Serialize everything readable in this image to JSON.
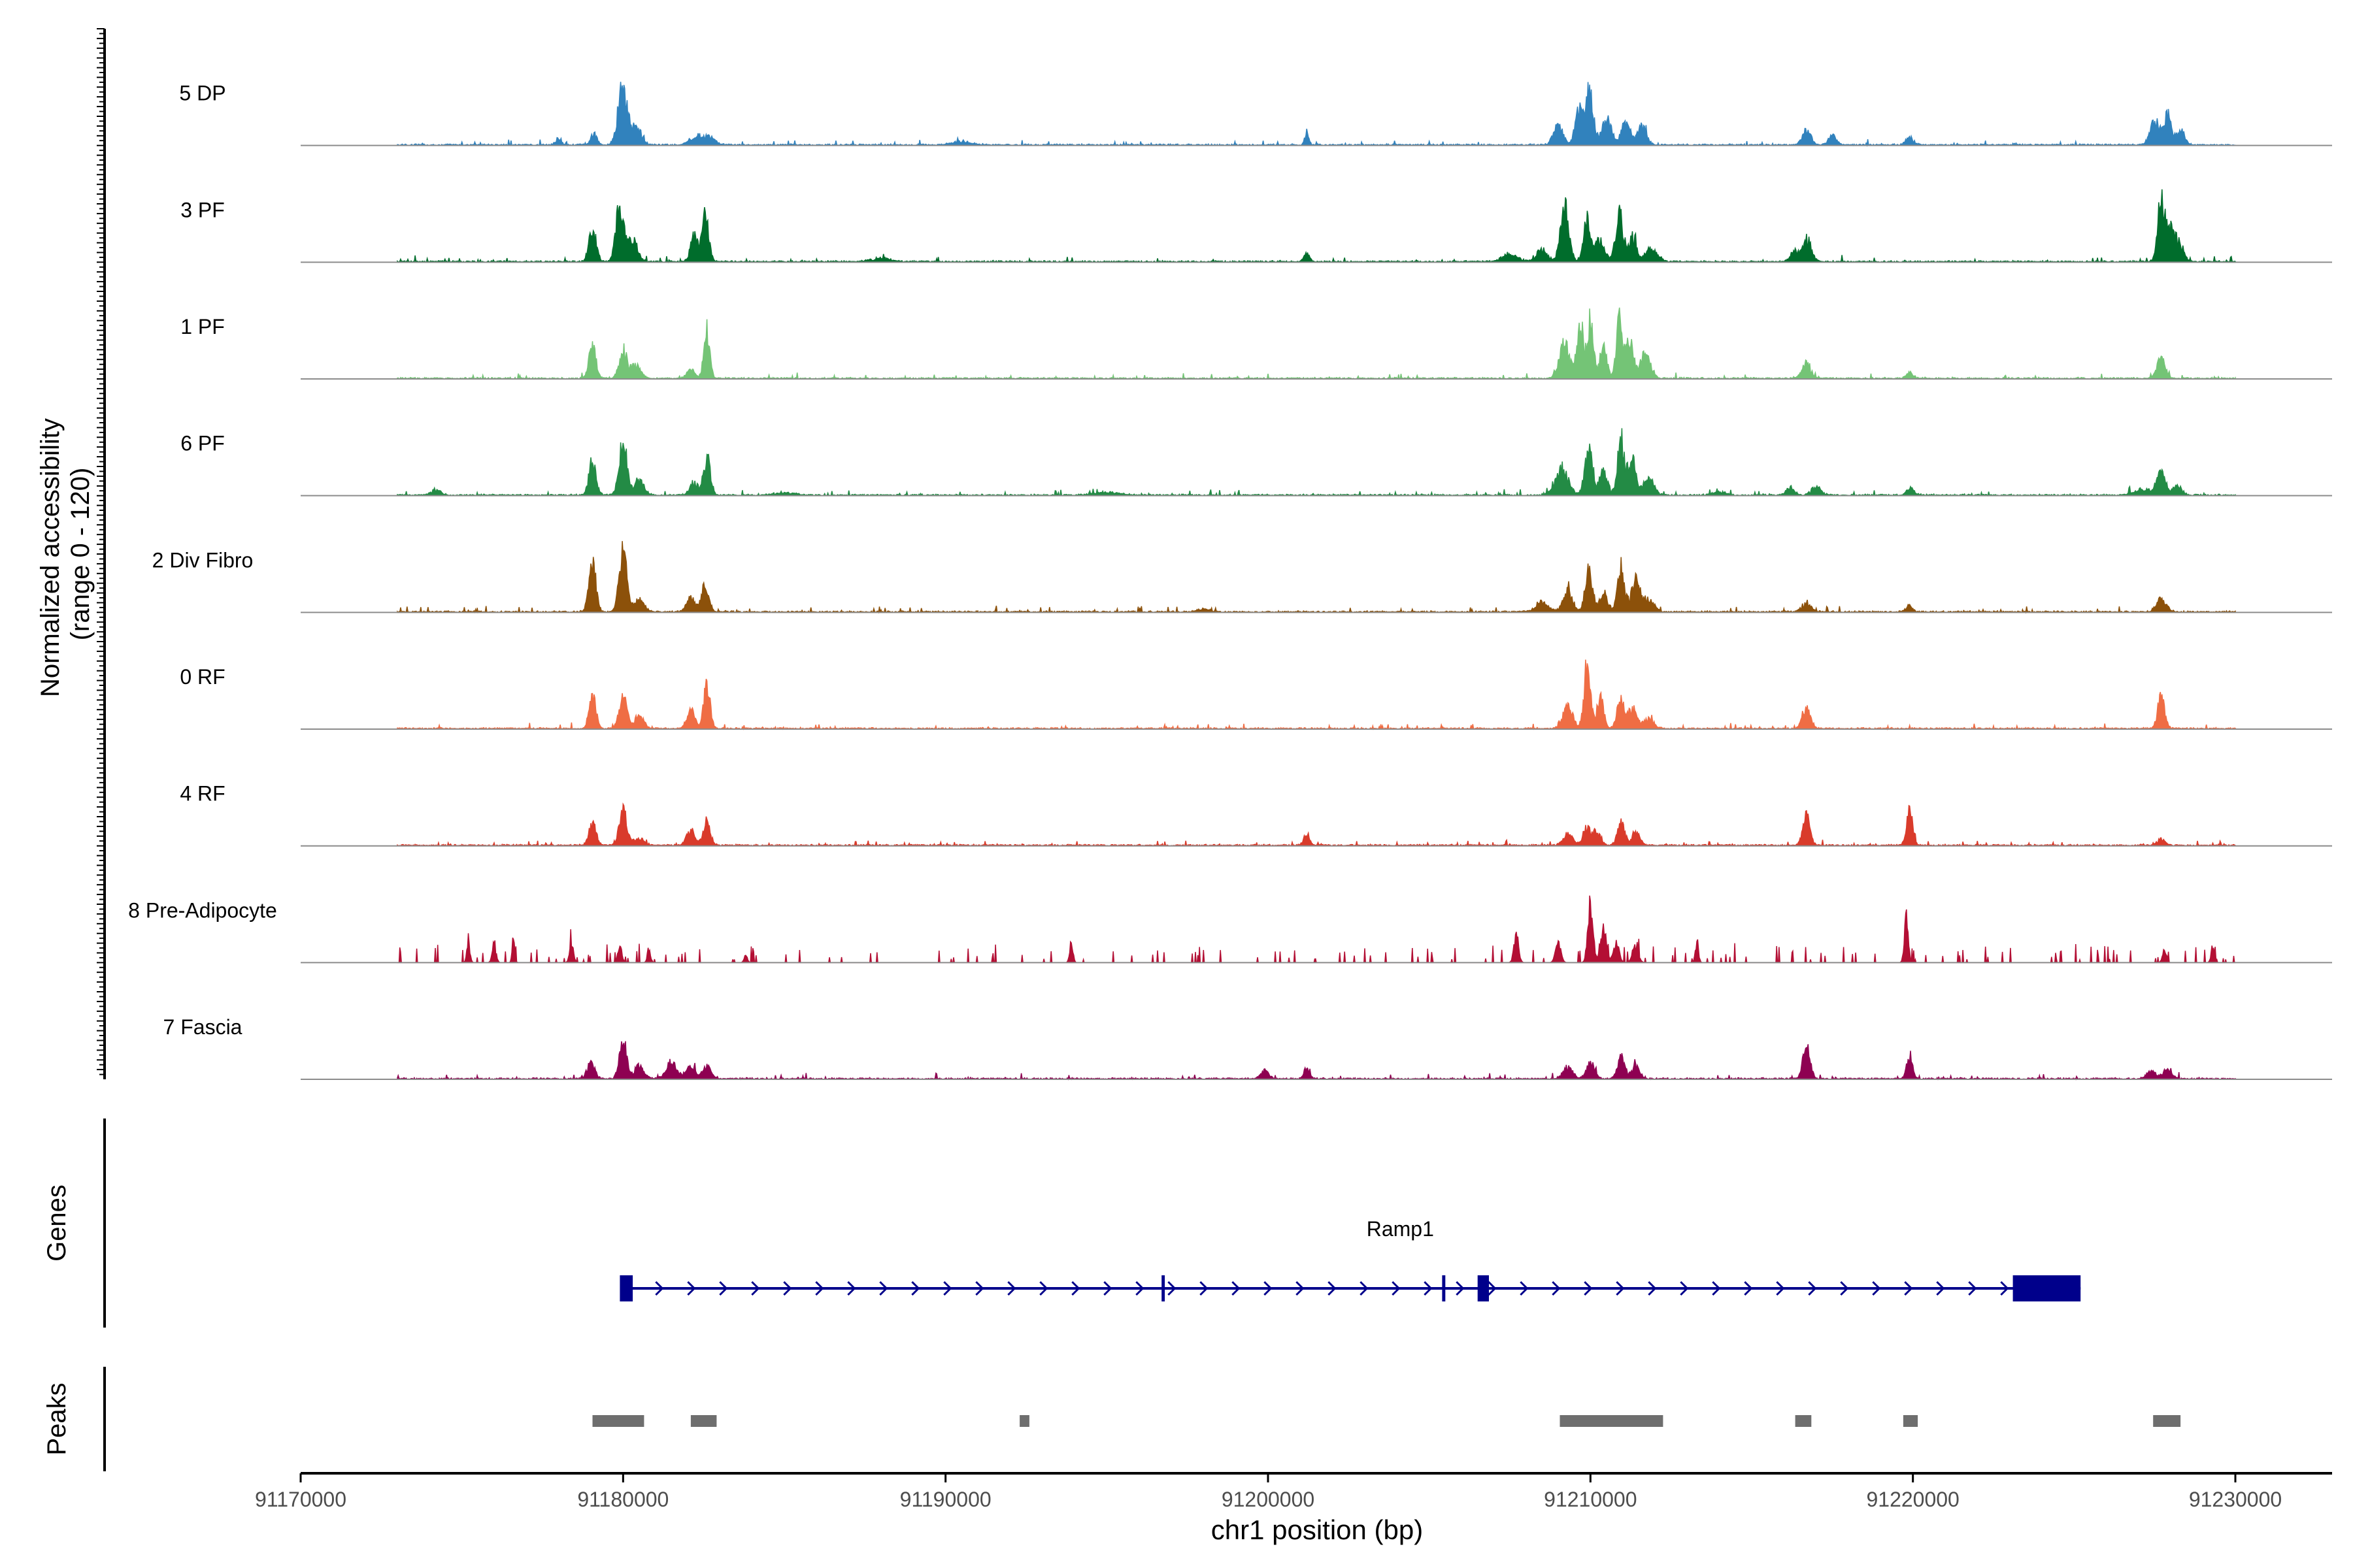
{
  "chart_data": {
    "type": "area",
    "title": "",
    "ylabel": "Normalized accessibility\n(range 0 - 120)",
    "ylabel_line1": "Normalized accessibility",
    "ylabel_line2": "(range 0 - 120)",
    "ylim": [
      0,
      120
    ],
    "xlabel": "chr1 position (bp)",
    "xlim": [
      91170000,
      91233000
    ],
    "x_ticks": [
      91170000,
      91180000,
      91190000,
      91200000,
      91210000,
      91220000,
      91230000
    ],
    "x_tick_labels": [
      "91170000",
      "91180000",
      "91190000",
      "91200000",
      "91210000",
      "91220000",
      "91230000"
    ],
    "track_start": 91173000,
    "track_end": 91230000,
    "series": [
      {
        "name": "5 DP",
        "color": "#3182bd",
        "peaks": [
          [
            91178000,
            0.12,
            80
          ],
          [
            91179100,
            0.18,
            90
          ],
          [
            91179980,
            0.95,
            140
          ],
          [
            91180400,
            0.3,
            160
          ],
          [
            91182300,
            0.15,
            200
          ],
          [
            91182700,
            0.12,
            150
          ],
          [
            91190500,
            0.05,
            300
          ],
          [
            91201200,
            0.22,
            60
          ],
          [
            91209000,
            0.3,
            150
          ],
          [
            91209650,
            0.6,
            120
          ],
          [
            91209980,
            0.88,
            110
          ],
          [
            91210500,
            0.4,
            160
          ],
          [
            91211100,
            0.38,
            130
          ],
          [
            91211600,
            0.3,
            140
          ],
          [
            91216700,
            0.22,
            130
          ],
          [
            91217500,
            0.14,
            130
          ],
          [
            91219900,
            0.12,
            120
          ],
          [
            91227500,
            0.38,
            140
          ],
          [
            91227900,
            0.48,
            120
          ],
          [
            91228300,
            0.25,
            120
          ]
        ]
      },
      {
        "name": "3 PF",
        "color": "#006d2c",
        "peaks": [
          [
            91179050,
            0.55,
            110
          ],
          [
            91179900,
            0.95,
            120
          ],
          [
            91180300,
            0.35,
            150
          ],
          [
            91182200,
            0.42,
            110
          ],
          [
            91182550,
            0.72,
            110
          ],
          [
            91188000,
            0.05,
            300
          ],
          [
            91201200,
            0.12,
            90
          ],
          [
            91207500,
            0.1,
            250
          ],
          [
            91208500,
            0.2,
            160
          ],
          [
            91209200,
            0.85,
            130
          ],
          [
            91209900,
            0.75,
            110
          ],
          [
            91210300,
            0.35,
            150
          ],
          [
            91210900,
            0.75,
            120
          ],
          [
            91211300,
            0.4,
            130
          ],
          [
            91211900,
            0.2,
            180
          ],
          [
            91216700,
            0.38,
            140
          ],
          [
            91216300,
            0.16,
            120
          ],
          [
            91227700,
            0.95,
            110
          ],
          [
            91228000,
            0.55,
            130
          ],
          [
            91228300,
            0.25,
            120
          ]
        ]
      },
      {
        "name": "1 PF",
        "color": "#74c476",
        "peaks": [
          [
            91179050,
            0.5,
            110
          ],
          [
            91180000,
            0.45,
            120
          ],
          [
            91180400,
            0.2,
            150
          ],
          [
            91182100,
            0.15,
            130
          ],
          [
            91182600,
            0.8,
            90
          ],
          [
            91209200,
            0.55,
            160
          ],
          [
            91209700,
            0.8,
            110
          ],
          [
            91210000,
            0.95,
            90
          ],
          [
            91210400,
            0.5,
            110
          ],
          [
            91210900,
            0.9,
            100
          ],
          [
            91211200,
            0.62,
            120
          ],
          [
            91211700,
            0.4,
            160
          ],
          [
            91216700,
            0.25,
            130
          ],
          [
            91219900,
            0.1,
            100
          ],
          [
            91227700,
            0.32,
            130
          ]
        ]
      },
      {
        "name": "6 PF",
        "color": "#238b45",
        "peaks": [
          [
            91174200,
            0.08,
            150
          ],
          [
            91179050,
            0.55,
            110
          ],
          [
            91180000,
            0.9,
            120
          ],
          [
            91180500,
            0.25,
            150
          ],
          [
            91182200,
            0.2,
            120
          ],
          [
            91182600,
            0.58,
            110
          ],
          [
            91185000,
            0.04,
            300
          ],
          [
            91195000,
            0.04,
            400
          ],
          [
            91209100,
            0.45,
            200
          ],
          [
            91209950,
            0.75,
            120
          ],
          [
            91210400,
            0.35,
            130
          ],
          [
            91210950,
            0.9,
            110
          ],
          [
            91211300,
            0.55,
            120
          ],
          [
            91211800,
            0.3,
            160
          ],
          [
            91214000,
            0.05,
            200
          ],
          [
            91216200,
            0.14,
            120
          ],
          [
            91217000,
            0.14,
            140
          ],
          [
            91219900,
            0.12,
            100
          ],
          [
            91227100,
            0.1,
            250
          ],
          [
            91227700,
            0.35,
            150
          ],
          [
            91228200,
            0.15,
            130
          ]
        ]
      },
      {
        "name": "2 Div Fibro",
        "color": "#8c510a",
        "peaks": [
          [
            91179050,
            0.75,
            110
          ],
          [
            91180000,
            0.95,
            120
          ],
          [
            91180500,
            0.2,
            150
          ],
          [
            91182100,
            0.22,
            130
          ],
          [
            91182550,
            0.48,
            110
          ],
          [
            91198000,
            0.04,
            200
          ],
          [
            91208500,
            0.15,
            200
          ],
          [
            91209300,
            0.35,
            140
          ],
          [
            91209950,
            0.65,
            110
          ],
          [
            91210400,
            0.3,
            130
          ],
          [
            91210950,
            0.72,
            110
          ],
          [
            91211400,
            0.5,
            130
          ],
          [
            91211800,
            0.2,
            160
          ],
          [
            91216700,
            0.14,
            140
          ],
          [
            91219900,
            0.1,
            100
          ],
          [
            91227700,
            0.2,
            150
          ]
        ]
      },
      {
        "name": "0 RF",
        "color": "#ef6d44",
        "peaks": [
          [
            91179050,
            0.5,
            110
          ],
          [
            91180000,
            0.5,
            120
          ],
          [
            91180500,
            0.2,
            150
          ],
          [
            91182100,
            0.3,
            130
          ],
          [
            91182600,
            0.72,
            100
          ],
          [
            91209300,
            0.35,
            150
          ],
          [
            91209900,
            0.95,
            100
          ],
          [
            91210300,
            0.5,
            110
          ],
          [
            91210950,
            0.55,
            110
          ],
          [
            91211300,
            0.32,
            120
          ],
          [
            91211800,
            0.15,
            160
          ],
          [
            91216700,
            0.3,
            130
          ],
          [
            91227700,
            0.5,
            110
          ]
        ]
      },
      {
        "name": "4 RF",
        "color": "#d93b2b",
        "peaks": [
          [
            91179050,
            0.35,
            110
          ],
          [
            91180000,
            0.55,
            120
          ],
          [
            91180500,
            0.12,
            150
          ],
          [
            91182100,
            0.25,
            130
          ],
          [
            91182600,
            0.35,
            110
          ],
          [
            91201200,
            0.18,
            90
          ],
          [
            91209300,
            0.18,
            150
          ],
          [
            91209900,
            0.3,
            120
          ],
          [
            91210200,
            0.2,
            120
          ],
          [
            91210950,
            0.35,
            110
          ],
          [
            91211400,
            0.2,
            130
          ],
          [
            91216700,
            0.5,
            110
          ],
          [
            91219900,
            0.62,
            90
          ],
          [
            91227700,
            0.1,
            120
          ]
        ]
      },
      {
        "name": "8 Pre-Adipocyte",
        "color": "#b30f34",
        "sparse": true,
        "peaks": [
          [
            91175200,
            0.3,
            50
          ],
          [
            91176000,
            0.25,
            60
          ],
          [
            91176600,
            0.35,
            40
          ],
          [
            91178400,
            0.28,
            60
          ],
          [
            91179900,
            0.3,
            60
          ],
          [
            91180800,
            0.22,
            50
          ],
          [
            91183800,
            0.12,
            50
          ],
          [
            91193900,
            0.32,
            50
          ],
          [
            91207700,
            0.45,
            70
          ],
          [
            91209000,
            0.3,
            80
          ],
          [
            91210000,
            0.95,
            80
          ],
          [
            91210400,
            0.55,
            90
          ],
          [
            91210800,
            0.3,
            90
          ],
          [
            91211400,
            0.25,
            90
          ],
          [
            91213300,
            0.3,
            50
          ],
          [
            91219800,
            0.7,
            60
          ],
          [
            91227800,
            0.2,
            60
          ],
          [
            91229300,
            0.28,
            50
          ]
        ]
      },
      {
        "name": "7 Fascia",
        "color": "#8e0152",
        "peaks": [
          [
            91179000,
            0.25,
            120
          ],
          [
            91180000,
            0.62,
            110
          ],
          [
            91180500,
            0.2,
            150
          ],
          [
            91181500,
            0.28,
            160
          ],
          [
            91182100,
            0.22,
            140
          ],
          [
            91182600,
            0.2,
            130
          ],
          [
            91199900,
            0.12,
            120
          ],
          [
            91201200,
            0.18,
            90
          ],
          [
            91209300,
            0.18,
            150
          ],
          [
            91210000,
            0.25,
            130
          ],
          [
            91210950,
            0.38,
            110
          ],
          [
            91211400,
            0.2,
            130
          ],
          [
            91216700,
            0.55,
            110
          ],
          [
            91219900,
            0.42,
            90
          ],
          [
            91227400,
            0.12,
            150
          ],
          [
            91227900,
            0.18,
            130
          ]
        ]
      }
    ],
    "genes": {
      "label": "Genes",
      "color": "#00008b",
      "items": [
        {
          "name": "Ramp1",
          "start": 91180000,
          "end": 91225200,
          "strand": "+",
          "exons": [
            [
              91179900,
              91180300
            ],
            [
              91196700,
              91196800
            ],
            [
              91205400,
              91205500
            ],
            [
              91206500,
              91206850
            ],
            [
              91223100,
              91225200
            ]
          ]
        }
      ]
    },
    "peaks_track": {
      "label": "Peaks",
      "color": "#6e6e6e",
      "regions": [
        [
          91179050,
          91180650
        ],
        [
          91182100,
          91182900
        ],
        [
          91192300,
          91192600
        ],
        [
          91209050,
          91212250
        ],
        [
          91216350,
          91216850
        ],
        [
          91219700,
          91220150
        ],
        [
          91227450,
          91228300
        ]
      ]
    }
  }
}
